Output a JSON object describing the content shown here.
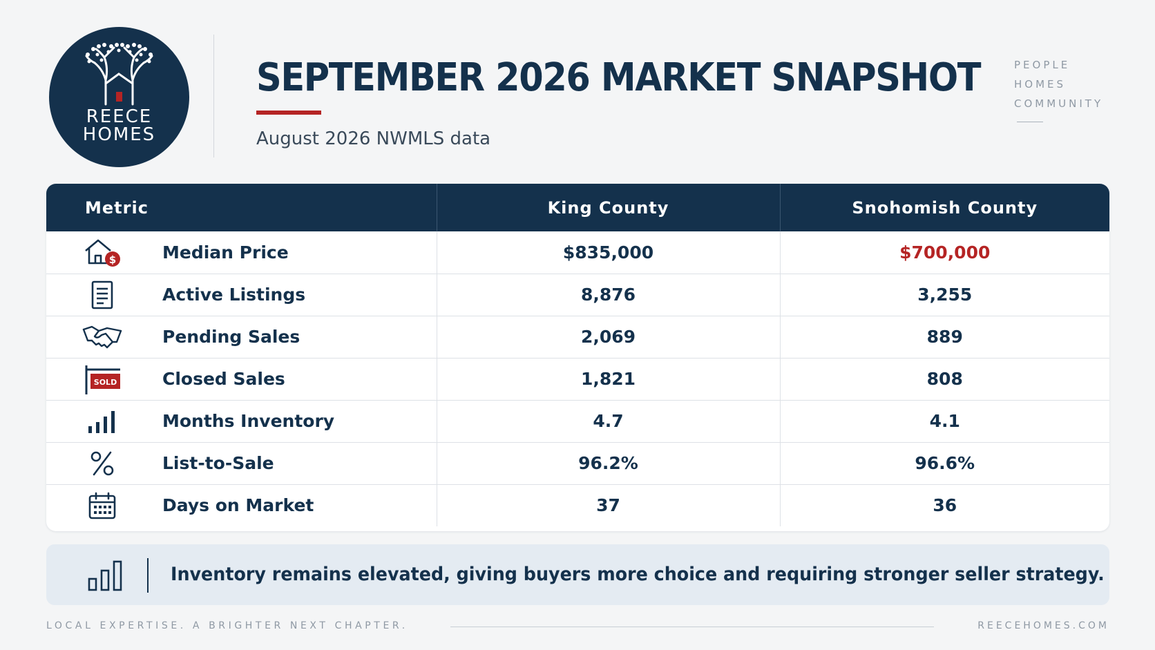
{
  "brand": {
    "line1": "REECE",
    "line2": "HOMES"
  },
  "header": {
    "title": "SEPTEMBER 2026 MARKET SNAPSHOT",
    "subtitle": "August 2026 NWMLS data",
    "tagline": [
      "PEOPLE",
      "HOMES",
      "COMMUNITY"
    ]
  },
  "table": {
    "columns": [
      "Metric",
      "King County",
      "Snohomish County"
    ],
    "rows": [
      {
        "icon": "house-dollar-icon",
        "metric": "Median Price",
        "king": "$835,000",
        "snohomish": "$700,000",
        "snohomish_highlight": true
      },
      {
        "icon": "document-list-icon",
        "metric": "Active Listings",
        "king": "8,876",
        "snohomish": "3,255"
      },
      {
        "icon": "handshake-icon",
        "metric": "Pending Sales",
        "king": "2,069",
        "snohomish": "889"
      },
      {
        "icon": "sold-sign-icon",
        "metric": "Closed Sales",
        "king": "1,821",
        "snohomish": "808",
        "icon_text": "SOLD"
      },
      {
        "icon": "bar-chart-icon",
        "metric": "Months Inventory",
        "king": "4.7",
        "snohomish": "4.1"
      },
      {
        "icon": "percent-icon",
        "metric": "List-to-Sale",
        "king": "96.2%",
        "snohomish": "96.6%"
      },
      {
        "icon": "calendar-icon",
        "metric": "Days on Market",
        "king": "37",
        "snohomish": "36"
      }
    ]
  },
  "note": {
    "icon": "bar-chart-outline-icon",
    "text": "Inventory remains elevated, giving buyers more choice and requiring stronger seller strategy."
  },
  "footer": {
    "left": "LOCAL EXPERTISE. A BRIGHTER NEXT CHAPTER.",
    "right": "REECEHOMES.COM"
  },
  "colors": {
    "navy": "#14314c",
    "accent_red": "#b52424",
    "note_bg": "#e4ebf2",
    "background": "#f4f5f6"
  }
}
